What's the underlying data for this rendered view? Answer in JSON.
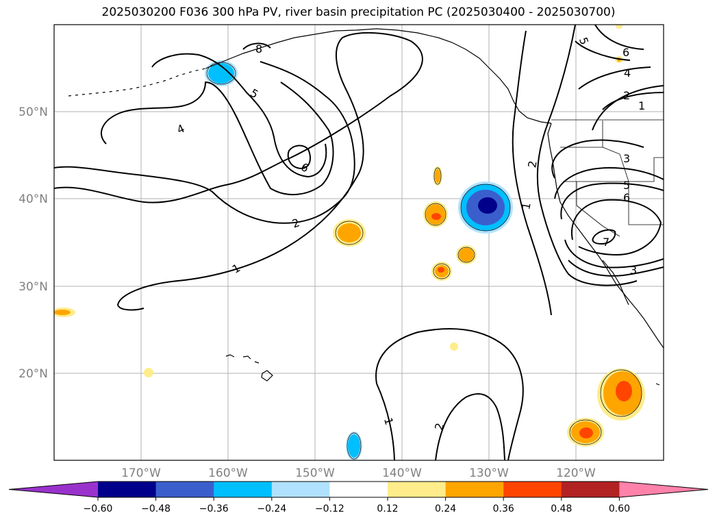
{
  "title": "2025030200 F036 300 hPa PV, river basin precipitation PC (2025030400 - 2025030700)",
  "lat_labels": [
    "50°N",
    "40°N",
    "30°N",
    "20°N"
  ],
  "lon_labels": [
    "170°W",
    "160°W",
    "150°W",
    "140°W",
    "130°W",
    "120°W"
  ],
  "pv_contour_labels": [
    "1",
    "2",
    "4",
    "5",
    "6",
    "8",
    "5",
    "6",
    "4",
    "2",
    "3",
    "5",
    "6",
    "7",
    "3",
    "1",
    "2",
    "1",
    "2",
    "1"
  ],
  "colorbar": {
    "colors": [
      "#9932cc",
      "#00008b",
      "#3a5fcd",
      "#00bfff",
      "#b0e2ff",
      "#ffffff",
      "#ffec8b",
      "#ffa500",
      "#ff4500",
      "#b22222",
      "#ff82ab"
    ],
    "tick_labels": [
      "−0.60",
      "−0.48",
      "−0.36",
      "−0.24",
      "−0.12",
      "0.12",
      "0.24",
      "0.36",
      "0.48",
      "0.60"
    ]
  }
}
